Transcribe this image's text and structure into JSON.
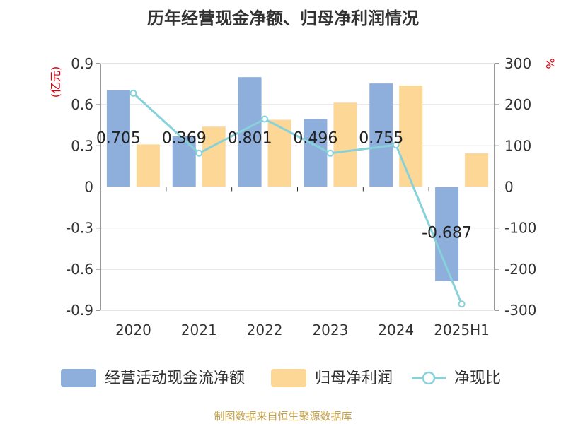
{
  "chart_data": {
    "type": "bar",
    "title": "历年经营现金净额、归母净利润情况",
    "categories": [
      "2020",
      "2021",
      "2022",
      "2023",
      "2024",
      "2025H1"
    ],
    "y_left": {
      "unit_label": "(亿元)",
      "ylim": [
        -0.9,
        0.9
      ],
      "ticks": [
        "0.9",
        "0.6",
        "0.3",
        "0",
        "-0.3",
        "-0.6",
        "-0.9"
      ],
      "tick_values": [
        0.9,
        0.6,
        0.3,
        0,
        -0.3,
        -0.6,
        -0.9
      ]
    },
    "y_right": {
      "unit_label": "%",
      "ylim": [
        -300,
        300
      ],
      "ticks": [
        "300",
        "200",
        "100",
        "0",
        "-100",
        "-200",
        "-300"
      ],
      "tick_values": [
        300,
        200,
        100,
        0,
        -100,
        -200,
        -300
      ]
    },
    "series": [
      {
        "name": "经营活动现金流净额",
        "type": "bar",
        "axis": "left",
        "color": "#8eaedb",
        "values": [
          0.705,
          0.369,
          0.801,
          0.496,
          0.755,
          -0.687
        ],
        "labels": [
          "0.705",
          "0.369",
          "0.801",
          "0.496",
          "0.755",
          "-0.687"
        ]
      },
      {
        "name": "归母净利润",
        "type": "bar",
        "axis": "left",
        "color": "#fdd796",
        "values": [
          0.31,
          0.44,
          0.49,
          0.615,
          0.74,
          0.245
        ]
      },
      {
        "name": "净现比",
        "type": "line",
        "axis": "right",
        "color": "#86d1da",
        "values": [
          228,
          82,
          165,
          82,
          102,
          -285
        ]
      }
    ],
    "grid": true,
    "legend_position": "bottom"
  },
  "footer": {
    "source": "制图数据来自恒生聚源数据库",
    "source_color": "#c4a24a"
  }
}
